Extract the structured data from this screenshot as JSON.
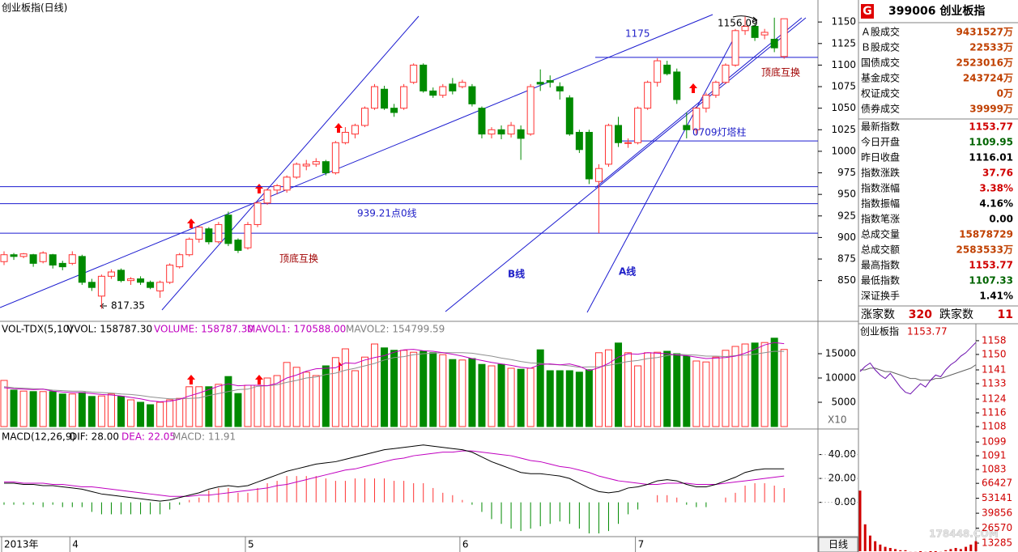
{
  "chart_data": {
    "type": "candlestick",
    "title": "创业板指(日线)",
    "categories": [
      "2013年",
      null,
      null,
      null,
      null,
      null,
      null,
      "4",
      null,
      null,
      null,
      null,
      null,
      null,
      null,
      null,
      null,
      null,
      null,
      null,
      null,
      null,
      null,
      null,
      null,
      "5",
      null,
      null,
      null,
      null,
      null,
      null,
      null,
      null,
      null,
      null,
      null,
      null,
      null,
      null,
      null,
      null,
      null,
      null,
      null,
      null,
      null,
      "6",
      null,
      null,
      null,
      null,
      null,
      null,
      null,
      null,
      null,
      null,
      null,
      null,
      null,
      null,
      null,
      null,
      null,
      "7",
      null,
      null,
      null,
      null,
      null,
      null,
      null,
      null,
      null,
      null,
      null,
      null,
      null,
      null,
      null
    ],
    "open": [
      872,
      880,
      878,
      880,
      872,
      880,
      870,
      870,
      878,
      848,
      832,
      855,
      862,
      850,
      852,
      848,
      838,
      848,
      866,
      880,
      898,
      910,
      895,
      926,
      897,
      888,
      915,
      940,
      955,
      955,
      970,
      983,
      985,
      988,
      975,
      1010,
      1020,
      1030,
      1050,
      1072,
      1050,
      1050,
      1080,
      1100,
      1070,
      1065,
      1078,
      1075,
      1075,
      1050,
      1020,
      1025,
      1020,
      1025,
      1020,
      1080,
      1082,
      1075,
      1062,
      1022,
      1022,
      965,
      985,
      1030,
      1010,
      1010,
      1050,
      1080,
      1100,
      1092,
      1030,
      1025,
      1050,
      1065,
      1080,
      1100,
      1140,
      1145,
      1135,
      1130,
      1109.95
    ],
    "high": [
      884,
      882,
      882,
      881,
      884,
      881,
      873,
      884,
      880,
      852,
      857,
      863,
      864,
      854,
      855,
      850,
      850,
      870,
      882,
      900,
      914,
      912,
      918,
      930,
      899,
      918,
      942,
      957,
      962,
      972,
      987,
      990,
      992,
      990,
      1012,
      1028,
      1032,
      1052,
      1078,
      1076,
      1055,
      1078,
      1102,
      1102,
      1074,
      1078,
      1085,
      1083,
      1078,
      1052,
      1028,
      1030,
      1034,
      1030,
      1078,
      1095,
      1088,
      1080,
      1065,
      1025,
      1025,
      985,
      1032,
      1040,
      1015,
      1052,
      1082,
      1108,
      1105,
      1096,
      1045,
      1052,
      1068,
      1082,
      1102,
      1142,
      1156.09,
      1148,
      1142,
      1155,
      1153.77
    ],
    "low": [
      868,
      874,
      876,
      866,
      870,
      864,
      862,
      868,
      845,
      838,
      817.35,
      852,
      848,
      845,
      845,
      840,
      830,
      846,
      864,
      878,
      894,
      892,
      893,
      890,
      882,
      886,
      912,
      938,
      950,
      952,
      968,
      978,
      982,
      972,
      973,
      1008,
      1015,
      1028,
      1048,
      1048,
      1040,
      1048,
      1078,
      1068,
      1062,
      1062,
      1066,
      1073,
      1052,
      1015,
      1015,
      1014,
      1016,
      990,
      1018,
      1070,
      1074,
      1060,
      1018,
      998,
      962,
      905,
      982,
      1005,
      1004,
      1008,
      1048,
      1075,
      1088,
      1055,
      1015,
      1020,
      1045,
      1062,
      1078,
      1098,
      1135,
      1128,
      1130,
      1115,
      1107.33
    ],
    "close": [
      880,
      878,
      881,
      870,
      882,
      868,
      866,
      880,
      848,
      842,
      855,
      860,
      850,
      852,
      848,
      842,
      848,
      868,
      880,
      898,
      912,
      895,
      915,
      893,
      885,
      915,
      940,
      955,
      960,
      970,
      985,
      985,
      988,
      975,
      1010,
      1022,
      1030,
      1050,
      1075,
      1050,
      1045,
      1075,
      1100,
      1070,
      1065,
      1075,
      1070,
      1080,
      1055,
      1020,
      1025,
      1020,
      1030,
      1015,
      1075,
      1078,
      1080,
      1070,
      1020,
      1002,
      968,
      980,
      1030,
      1010,
      1010,
      1050,
      1080,
      1105,
      1090,
      1060,
      1025,
      1050,
      1065,
      1080,
      1100,
      1140,
      1145,
      1132,
      1138,
      1120,
      1153.77
    ],
    "colors": {
      "up": "#ff3232",
      "down": "#008a00"
    },
    "ylim": [
      814,
      1168
    ],
    "yticks": [
      850,
      875,
      900,
      925,
      950,
      975,
      1000,
      1025,
      1050,
      1075,
      1100,
      1125,
      1150
    ],
    "reference_lines": [
      1109,
      1012,
      959,
      939.21,
      905
    ],
    "annotations": [
      {
        "text": "1156.09",
        "color": "#000000"
      },
      {
        "text": "1175",
        "color": "#2020c8"
      },
      {
        "text": "顶底互换",
        "color": "#a00000"
      },
      {
        "text": "0709灯塔柱",
        "color": "#2020c8"
      },
      {
        "text": "939.21点0线",
        "color": "#2020c8"
      },
      {
        "text": "顶底互换",
        "color": "#a00000"
      },
      {
        "text": "B线",
        "color": "#2020c8"
      },
      {
        "text": "A线",
        "color": "#2020c8"
      },
      {
        "text": "817.35",
        "color": "#000000"
      }
    ],
    "volume": {
      "header": [
        {
          "text": "VOL-TDX(5,10)",
          "color": "#000000"
        },
        {
          "text": "VVOL: 158787.30",
          "color": "#000000"
        },
        {
          "text": "VOLUME: 158787.30",
          "color": "#c000c0"
        },
        {
          "text": "MAVOL1: 170588.00",
          "color": "#c000c0"
        },
        {
          "text": "MAVOL2: 154799.59",
          "color": "#808080"
        }
      ],
      "scale_label": "X10",
      "ylim": [
        0,
        21000
      ],
      "yticks": [
        5000,
        10000,
        15000
      ],
      "values": [
        9500,
        7500,
        7300,
        7200,
        7200,
        7200,
        6700,
        6700,
        7000,
        6200,
        6300,
        6700,
        6200,
        5500,
        5000,
        4500,
        5000,
        5500,
        5800,
        8200,
        8200,
        8200,
        8700,
        10300,
        6800,
        8500,
        8500,
        10000,
        10500,
        13200,
        12200,
        11200,
        10500,
        12500,
        14200,
        16000,
        11500,
        14300,
        17000,
        16200,
        15700,
        15700,
        15300,
        15500,
        15200,
        14800,
        13800,
        13700,
        14000,
        12800,
        12500,
        12800,
        12000,
        11800,
        12000,
        15800,
        11500,
        11500,
        11500,
        11200,
        11700,
        15200,
        15800,
        17200,
        15200,
        12500,
        15200,
        15300,
        15500,
        15000,
        14500,
        13500,
        13300,
        14300,
        15700,
        16500,
        17000,
        17200,
        17300,
        18200,
        15879
      ],
      "ma5": [
        8000,
        7800,
        7700,
        7600,
        7700,
        7300,
        7100,
        7000,
        7000,
        6800,
        6600,
        6500,
        6300,
        6000,
        5700,
        5300,
        5100,
        5200,
        5600,
        6300,
        6900,
        7600,
        8300,
        8800,
        8400,
        8500,
        8500,
        8400,
        8900,
        10000,
        10600,
        11400,
        11900,
        12000,
        12100,
        13100,
        13000,
        13700,
        14200,
        14600,
        15300,
        15800,
        15900,
        15600,
        15500,
        15200,
        14900,
        14500,
        14000,
        13600,
        13200,
        12900,
        12600,
        12200,
        12000,
        12800,
        12900,
        12700,
        12900,
        12400,
        11500,
        12100,
        13000,
        14300,
        15000,
        14900,
        15200,
        15100,
        15000,
        14700,
        14600,
        14300,
        14000,
        14100,
        14200,
        14500,
        15100,
        15900,
        16800,
        17300,
        17059
      ],
      "ma10": [
        8200,
        8000,
        7900,
        7800,
        7700,
        7500,
        7400,
        7300,
        7300,
        7100,
        7000,
        6900,
        6700,
        6600,
        6400,
        6100,
        5900,
        5700,
        5700,
        5800,
        5900,
        6400,
        6800,
        7200,
        7600,
        7700,
        8300,
        8400,
        8600,
        9100,
        9500,
        10000,
        10200,
        10700,
        11000,
        11600,
        12000,
        12500,
        13000,
        13700,
        14200,
        14400,
        14800,
        15000,
        15100,
        15200,
        15200,
        15200,
        15100,
        14800,
        14500,
        14100,
        13800,
        13400,
        13100,
        13000,
        12800,
        12700,
        12500,
        12200,
        12300,
        12300,
        12600,
        13000,
        13400,
        13600,
        14000,
        14200,
        14600,
        14900,
        14800,
        14700,
        14500,
        14500,
        14400,
        14600,
        14700,
        14900,
        15200,
        15500,
        15480
      ]
    },
    "macd": {
      "header": [
        {
          "text": "MACD(12,26,9)",
          "color": "#000000"
        },
        {
          "text": "DIF: 28.00",
          "color": "#000000"
        },
        {
          "text": "DEA: 22.05",
          "color": "#c000c0"
        },
        {
          "text": "MACD: 11.91",
          "color": "#808080"
        }
      ],
      "ylim": [
        -28,
        58
      ],
      "yticks": [
        {
          "value": 0,
          "label": "0.00"
        },
        {
          "value": 20,
          "label": "20.00"
        },
        {
          "value": 40,
          "label": "40.00"
        }
      ],
      "dif": [
        16,
        16,
        15,
        15,
        14,
        14,
        13,
        12,
        11,
        9,
        7,
        6,
        5,
        4,
        3,
        2,
        1,
        2,
        4,
        6,
        8,
        11,
        13,
        14,
        13,
        14,
        17,
        20,
        23,
        26,
        28,
        30,
        32,
        33,
        34,
        36,
        38,
        40,
        42,
        44,
        45,
        46,
        47,
        48,
        47,
        46,
        45,
        44,
        42,
        38,
        34,
        31,
        28,
        25,
        24,
        24,
        23,
        22,
        20,
        16,
        12,
        9,
        8,
        9,
        12,
        13,
        15,
        18,
        19,
        18,
        15,
        13,
        13,
        15,
        18,
        21,
        25,
        27,
        28,
        28,
        28
      ],
      "dea": [
        17,
        17,
        16,
        16,
        16,
        15,
        15,
        14,
        13,
        13,
        12,
        11,
        10,
        9,
        8,
        7,
        6,
        5,
        5,
        5,
        6,
        6,
        7,
        8,
        9,
        10,
        11,
        12,
        14,
        15,
        17,
        19,
        21,
        23,
        25,
        27,
        28,
        30,
        32,
        34,
        36,
        37,
        39,
        40,
        41,
        42,
        42,
        43,
        43,
        42,
        41,
        40,
        39,
        37,
        35,
        34,
        32,
        30,
        29,
        27,
        25,
        22,
        20,
        18,
        17,
        16,
        15,
        15,
        16,
        16,
        16,
        15,
        15,
        15,
        16,
        17,
        18,
        19,
        20,
        21,
        22.05
      ],
      "values": [
        -2,
        -2,
        -2,
        -2,
        -4,
        -2,
        -4,
        -4,
        -4,
        -8,
        -10,
        -10,
        -10,
        -10,
        -10,
        -10,
        -10,
        -6,
        -2,
        2,
        4,
        10,
        12,
        12,
        8,
        8,
        12,
        16,
        18,
        22,
        22,
        22,
        22,
        20,
        18,
        18,
        20,
        20,
        20,
        20,
        18,
        18,
        16,
        16,
        12,
        8,
        6,
        2,
        -2,
        -8,
        -14,
        -18,
        -22,
        -24,
        -22,
        -20,
        -18,
        -16,
        -18,
        -22,
        -26,
        -26,
        -24,
        -18,
        -10,
        -6,
        0,
        6,
        6,
        4,
        -2,
        -4,
        -4,
        0,
        4,
        8,
        14,
        16,
        16,
        14,
        11.91
      ]
    }
  },
  "period": "日线",
  "quote": {
    "badge": "G",
    "code_name": "399006 创业板指",
    "rows": [
      {
        "label": "Ａ股成交",
        "value": "9431527万",
        "color": "#c04000"
      },
      {
        "label": "Ｂ股成交",
        "value": "22533万",
        "color": "#c04000"
      },
      {
        "label": "国债成交",
        "value": "2523016万",
        "color": "#c04000"
      },
      {
        "label": "基金成交",
        "value": "243724万",
        "color": "#c04000"
      },
      {
        "label": "权证成交",
        "value": "0万",
        "color": "#c04000"
      },
      {
        "label": "债券成交",
        "value": "39999万",
        "color": "#c04000"
      },
      {
        "label": "最新指数",
        "value": "1153.77",
        "color": "#d00000"
      },
      {
        "label": "今日开盘",
        "value": "1109.95",
        "color": "#006400"
      },
      {
        "label": "昨日收盘",
        "value": "1116.01",
        "color": "#000000"
      },
      {
        "label": "指数涨跌",
        "value": "37.76",
        "color": "#d00000"
      },
      {
        "label": "指数涨幅",
        "value": "3.38%",
        "color": "#d00000"
      },
      {
        "label": "指数振幅",
        "value": "4.16%",
        "color": "#000000"
      },
      {
        "label": "指数笔涨",
        "value": "0.00",
        "color": "#000000"
      },
      {
        "label": "总成交量",
        "value": "15878729",
        "color": "#c04000"
      },
      {
        "label": "总成交额",
        "value": "2583533万",
        "color": "#c04000"
      },
      {
        "label": "最高指数",
        "value": "1153.77",
        "color": "#d00000"
      },
      {
        "label": "最低指数",
        "value": "1107.33",
        "color": "#006400"
      },
      {
        "label": "深证换手",
        "value": "1.41%",
        "color": "#000000"
      }
    ],
    "advancers_label": "涨家数",
    "advancers": "320",
    "decliners_label": "跌家数",
    "decliners": "11"
  },
  "intraday": {
    "title": "创业板指",
    "last": "1153.77",
    "price": [
      1140,
      1143,
      1145,
      1141,
      1138,
      1136,
      1139,
      1135,
      1131,
      1128,
      1127,
      1130,
      1133,
      1131,
      1135,
      1138,
      1137,
      1141,
      1144,
      1146,
      1149,
      1151,
      1154,
      1157
    ],
    "avg": [
      1141,
      1141,
      1142,
      1142,
      1141,
      1140,
      1140,
      1139,
      1138,
      1137,
      1136,
      1136,
      1135,
      1135,
      1135,
      1136,
      1136,
      1137,
      1138,
      1139,
      1140,
      1141,
      1142,
      1144
    ],
    "volume": [
      60000,
      30000,
      20000,
      15000,
      12000,
      10000,
      9000,
      8000,
      7000,
      7000,
      6000,
      6000,
      5000,
      6000,
      5000,
      5000,
      6000,
      7000,
      8000,
      9000,
      8000,
      10000,
      12000,
      15000
    ],
    "ylim": [
      1078.3,
      1160.8
    ],
    "yticks": [
      1083,
      1091,
      1099,
      1108,
      1116,
      1124,
      1133,
      1141,
      1150,
      1158
    ],
    "volume_ylim": [
      0,
      79500
    ],
    "volume_yticks": [
      13285,
      26570,
      39856,
      53141,
      66427
    ]
  },
  "watermark": "178448.COM"
}
